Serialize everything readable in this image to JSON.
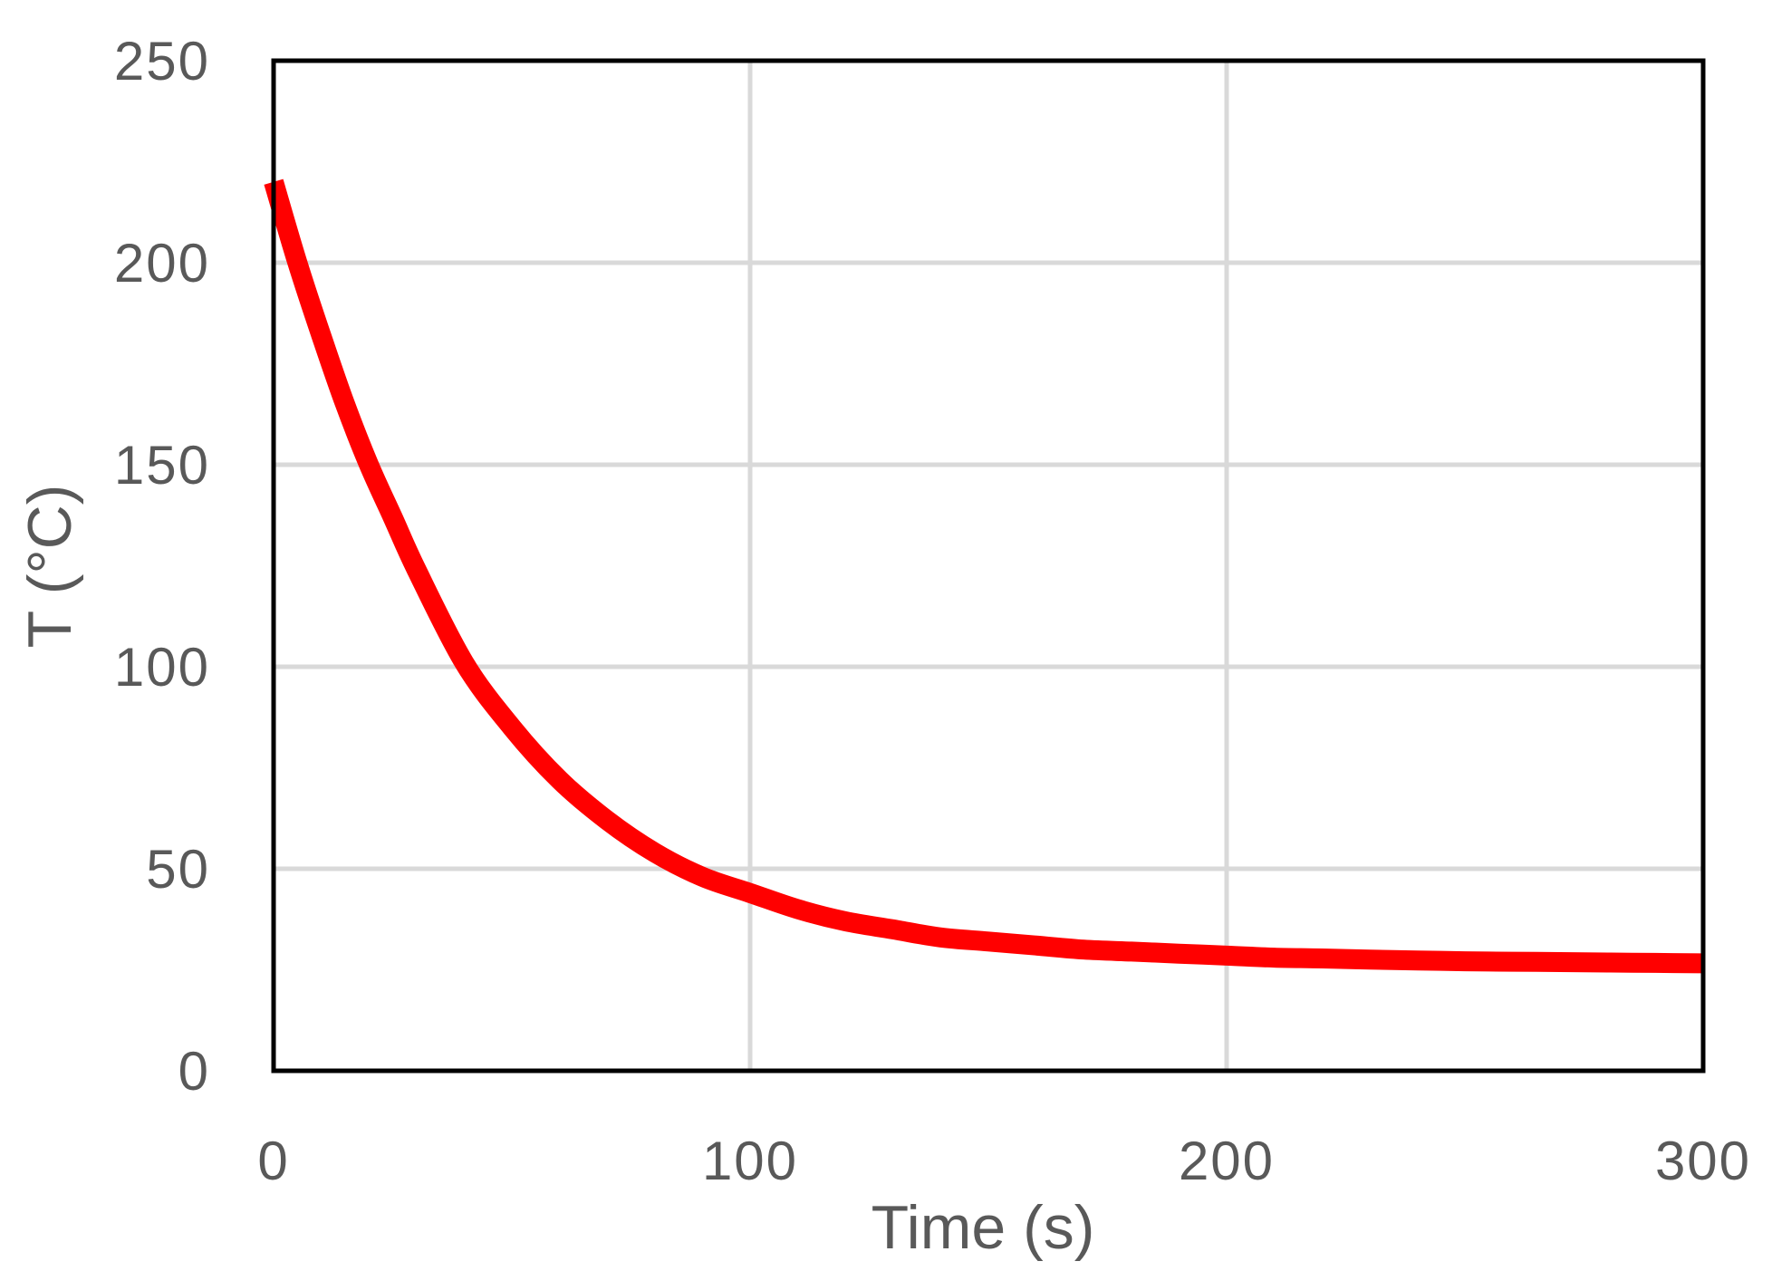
{
  "chart_data": {
    "type": "line",
    "title": "",
    "xlabel": "Time (s)",
    "ylabel": "T (°C)",
    "xlim": [
      0,
      300
    ],
    "ylim": [
      0,
      250
    ],
    "x_ticks": [
      0,
      100,
      200,
      300
    ],
    "y_ticks": [
      0,
      50,
      100,
      150,
      200,
      250
    ],
    "grid": true,
    "legend": "none",
    "series": [
      {
        "color": "#ff0000",
        "x": [
          0,
          5,
          10,
          15,
          20,
          25,
          30,
          40,
          50,
          60,
          70,
          80,
          90,
          100,
          110,
          120,
          130,
          140,
          150,
          160,
          170,
          180,
          190,
          200,
          210,
          220,
          230,
          240,
          250,
          260,
          270,
          280,
          290,
          300
        ],
        "y": [
          220,
          200,
          182,
          165,
          150,
          137,
          124,
          101,
          85,
          72,
          62,
          54,
          48,
          44,
          40,
          37,
          35,
          33,
          32,
          31,
          30,
          29.5,
          29,
          28.5,
          28,
          27.8,
          27.5,
          27.3,
          27.1,
          27,
          26.9,
          26.8,
          26.7,
          26.6
        ]
      }
    ]
  }
}
